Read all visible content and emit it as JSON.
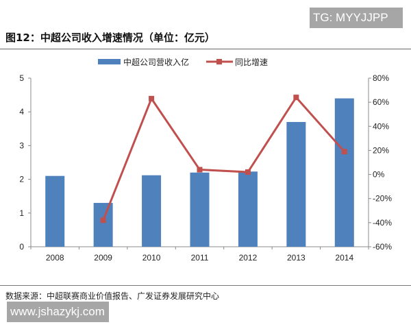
{
  "watermark_top": "TG: MYYJJPP",
  "watermark_bottom": "www.jshazykj.com",
  "source": "数据来源：中超联赛商业价值报告、广发证券发展研究中心",
  "chart_data": {
    "type": "bar+line",
    "title": "图12：中超公司收入增速情况（单位：亿元）",
    "categories": [
      "2008",
      "2009",
      "2010",
      "2011",
      "2012",
      "2013",
      "2014"
    ],
    "series": [
      {
        "name": "中超公司营收入亿",
        "type": "bar",
        "axis": "left",
        "color": "#4f81bd",
        "values": [
          2.1,
          1.3,
          2.12,
          2.2,
          2.23,
          3.7,
          4.4
        ]
      },
      {
        "name": "同比增速",
        "type": "line",
        "axis": "right",
        "color": "#c0504d",
        "values": [
          null,
          -38,
          63,
          4,
          2,
          64,
          19
        ]
      }
    ],
    "left_axis": {
      "ylim": [
        0,
        5
      ],
      "ticks": [
        "0",
        "1",
        "2",
        "3",
        "4",
        "5"
      ]
    },
    "right_axis": {
      "ylim": [
        -60,
        80
      ],
      "ticks": [
        "-60%",
        "-40%",
        "-20%",
        "0%",
        "20%",
        "40%",
        "60%",
        "80%"
      ]
    },
    "legend": "top",
    "grid": false
  }
}
